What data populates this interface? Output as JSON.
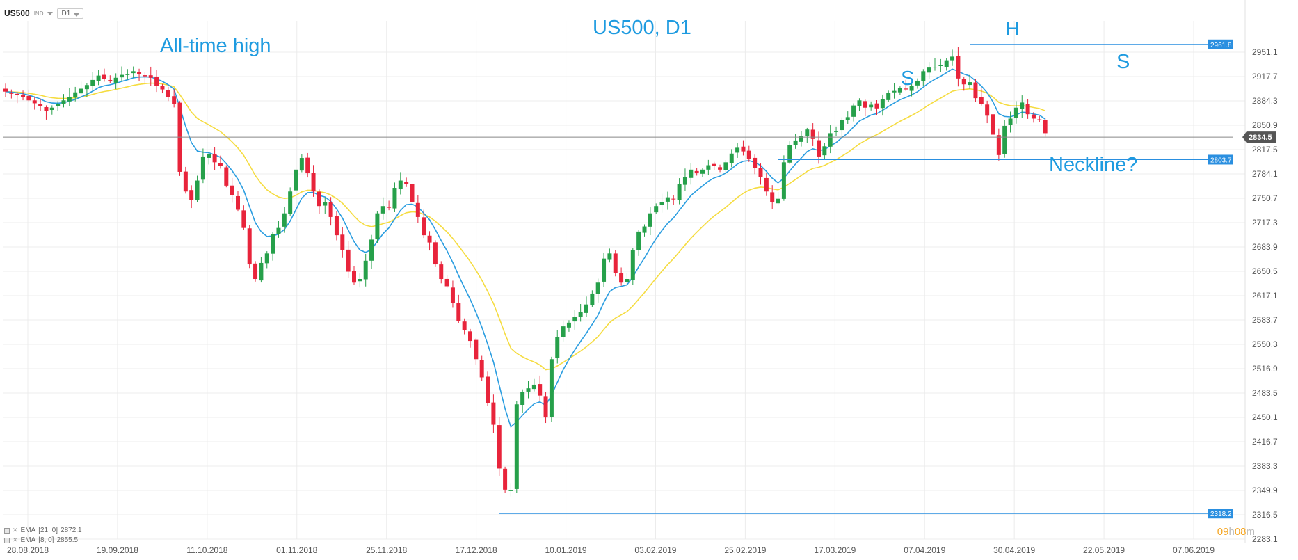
{
  "header": {
    "symbol": "US500",
    "type": "IND",
    "timeframe": "D1"
  },
  "annotations": {
    "title": "US500, D1",
    "all_time_high": "All-time high",
    "s_left": "S",
    "h": "H",
    "s_right": "S",
    "neckline": "Neckline?"
  },
  "legend": [
    {
      "label": "EMA",
      "params": "[21, 0]",
      "value": "2872.1"
    },
    {
      "label": "EMA",
      "params": "[8, 0]",
      "value": "2855.5"
    }
  ],
  "countdown": {
    "hours": "09",
    "h": "h",
    "minutes": "08",
    "m": "m"
  },
  "colors": {
    "up": "#26a04a",
    "down": "#e8243b",
    "ema_fast": "#2a9de0",
    "ema_slow": "#f5dc40",
    "annotation": "#1e9be0",
    "price_tag": "#2a8fe0",
    "current_tag": "#555555",
    "grid": "#ececec",
    "axis_text": "#555555"
  },
  "chart_data": {
    "type": "candlestick",
    "title": "US500, D1",
    "ylim": [
      2283.1,
      2984.5
    ],
    "y_ticks": [
      "2951.1",
      "2917.7",
      "2884.3",
      "2850.9",
      "2817.5",
      "2784.1",
      "2750.7",
      "2717.3",
      "2683.9",
      "2650.5",
      "2617.1",
      "2583.7",
      "2550.3",
      "2516.9",
      "2483.5",
      "2450.1",
      "2416.7",
      "2383.3",
      "2349.9",
      "2316.5",
      "2283.1"
    ],
    "x_labels": [
      "28.08.2018",
      "19.09.2018",
      "11.10.2018",
      "01.11.2018",
      "25.11.2018",
      "17.12.2018",
      "10.01.2019",
      "03.02.2019",
      "25.02.2019",
      "17.03.2019",
      "07.04.2019",
      "30.04.2019",
      "22.05.2019",
      "07.06.2019"
    ],
    "level_tags": [
      {
        "value": "2961.8",
        "from": "2019-04-30",
        "style": "blue"
      },
      {
        "value": "2803.7",
        "from": "2019-03-11",
        "style": "blue"
      },
      {
        "value": "2318.2",
        "from": "2018-12-24",
        "style": "blue"
      },
      {
        "value": "2834.5",
        "from": "start",
        "style": "current"
      }
    ],
    "close": [
      2897,
      2894,
      2892,
      2890,
      2885,
      2881,
      2877,
      2870,
      2875,
      2880,
      2885,
      2890,
      2896,
      2901,
      2906,
      2913,
      2919,
      2914,
      2911,
      2916,
      2920,
      2921,
      2925,
      2921,
      2918,
      2916,
      2905,
      2900,
      2890,
      2880,
      2787,
      2760,
      2748,
      2775,
      2808,
      2811,
      2800,
      2795,
      2768,
      2755,
      2735,
      2710,
      2660,
      2640,
      2662,
      2675,
      2702,
      2710,
      2730,
      2760,
      2790,
      2806,
      2785,
      2760,
      2740,
      2745,
      2725,
      2700,
      2680,
      2650,
      2635,
      2640,
      2665,
      2694,
      2730,
      2740,
      2738,
      2765,
      2775,
      2770,
      2745,
      2725,
      2700,
      2690,
      2660,
      2640,
      2630,
      2607,
      2582,
      2570,
      2555,
      2530,
      2505,
      2470,
      2440,
      2380,
      2351,
      2350,
      2468,
      2485,
      2490,
      2495,
      2480,
      2450,
      2530,
      2560,
      2575,
      2580,
      2588,
      2595,
      2605,
      2620,
      2635,
      2668,
      2675,
      2648,
      2635,
      2640,
      2680,
      2705,
      2712,
      2730,
      2740,
      2745,
      2752,
      2750,
      2770,
      2780,
      2790,
      2785,
      2790,
      2796,
      2795,
      2790,
      2800,
      2812,
      2820,
      2815,
      2805,
      2792,
      2780,
      2760,
      2745,
      2750,
      2800,
      2824,
      2830,
      2836,
      2845,
      2832,
      2808,
      2822,
      2840,
      2843,
      2858,
      2862,
      2878,
      2885,
      2875,
      2879,
      2874,
      2887,
      2895,
      2898,
      2902,
      2900,
      2905,
      2912,
      2925,
      2930,
      2931,
      2933,
      2940,
      2945,
      2915,
      2907,
      2910,
      2888,
      2880,
      2864,
      2838,
      2810,
      2850,
      2860,
      2875,
      2882,
      2866,
      2860,
      2859,
      2840
    ]
  }
}
